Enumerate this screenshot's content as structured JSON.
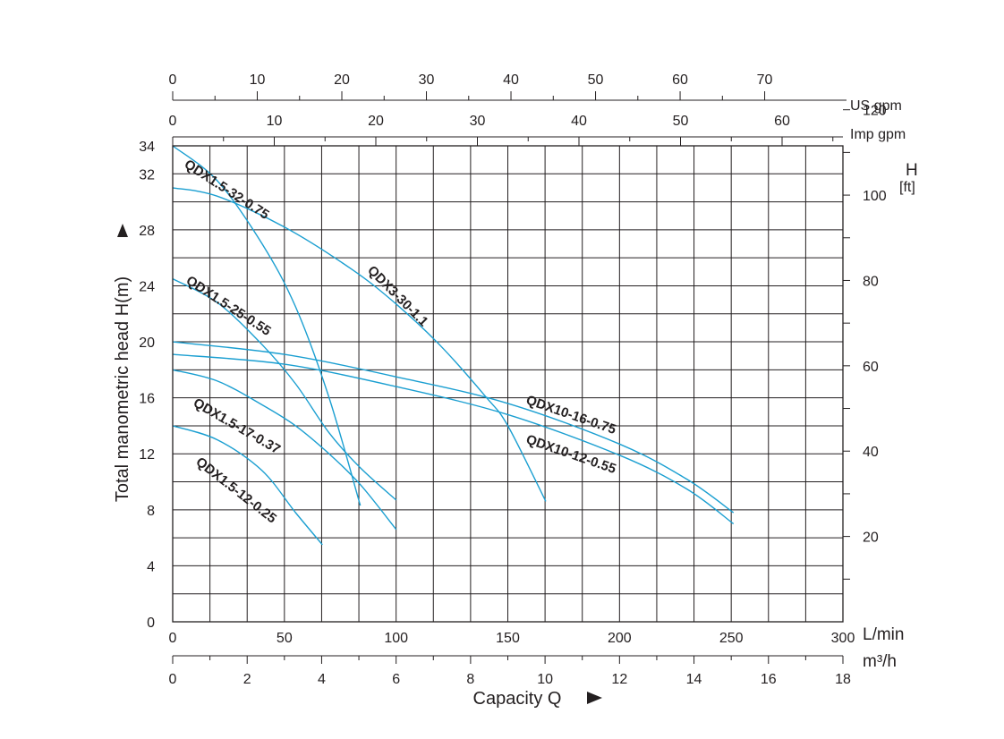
{
  "chart_data": {
    "type": "line",
    "title": "",
    "ylabel": "Total manometric head H(m)",
    "xlabel": "Capacity Q",
    "grid": true,
    "x_lmin": {
      "range": [
        0,
        300
      ],
      "ticks": [
        0,
        50,
        100,
        150,
        200,
        250,
        300
      ],
      "unit": "L/min"
    },
    "x_m3h": {
      "range": [
        0,
        18
      ],
      "ticks": [
        0,
        2,
        4,
        6,
        8,
        10,
        12,
        14,
        16,
        18
      ],
      "unit": "m³/h"
    },
    "x_usgpm": {
      "ticks": [
        0,
        10,
        20,
        30,
        40,
        50,
        60,
        70
      ],
      "unit": "US gpm"
    },
    "x_impgpm": {
      "ticks": [
        0,
        10,
        20,
        30,
        40,
        50,
        60
      ],
      "unit": "Imp gpm"
    },
    "y_m": {
      "range": [
        0,
        34
      ],
      "ticks": [
        0,
        4,
        8,
        12,
        16,
        20,
        24,
        28,
        32,
        34
      ]
    },
    "y_ft": {
      "ticks": [
        20,
        40,
        60,
        80,
        100,
        120
      ],
      "label": "H",
      "unit": "[ft]"
    },
    "series": [
      {
        "name": "QDX1.5-32-0.75",
        "x": [
          0,
          20,
          40,
          55,
          70,
          84
        ],
        "y": [
          34,
          31.5,
          27,
          22.5,
          16,
          8.3
        ]
      },
      {
        "name": "QDX1.5-25-0.55",
        "x": [
          0,
          20,
          40,
          55,
          70,
          84,
          100
        ],
        "y": [
          24.5,
          22.8,
          19.8,
          17,
          13.5,
          11,
          8.7
        ]
      },
      {
        "name": "QDX1.5-17-0.37",
        "x": [
          0,
          20,
          40,
          55,
          70,
          84,
          100
        ],
        "y": [
          18,
          17.2,
          15.5,
          14,
          12,
          9.8,
          6.6
        ]
      },
      {
        "name": "QDX1.5-12-0.25",
        "x": [
          0,
          20,
          40,
          55,
          67
        ],
        "y": [
          14,
          13,
          10.8,
          7.8,
          5.5
        ]
      },
      {
        "name": "QDX3-30-1.1",
        "x": [
          0,
          20,
          50,
          80,
          100,
          120,
          140,
          150,
          167
        ],
        "y": [
          31,
          30.4,
          28.2,
          25.2,
          22.7,
          19.7,
          16.1,
          14,
          8.6
        ]
      },
      {
        "name": "QDX10-16-0.75",
        "x": [
          0,
          50,
          100,
          150,
          200,
          230,
          251
        ],
        "y": [
          20,
          19.1,
          17.5,
          15.6,
          12.7,
          10.2,
          7.8
        ]
      },
      {
        "name": "QDX10-12-0.55",
        "x": [
          0,
          50,
          100,
          150,
          200,
          230,
          251
        ],
        "y": [
          19.1,
          18.4,
          16.8,
          14.8,
          11.9,
          9.5,
          7
        ]
      }
    ]
  }
}
